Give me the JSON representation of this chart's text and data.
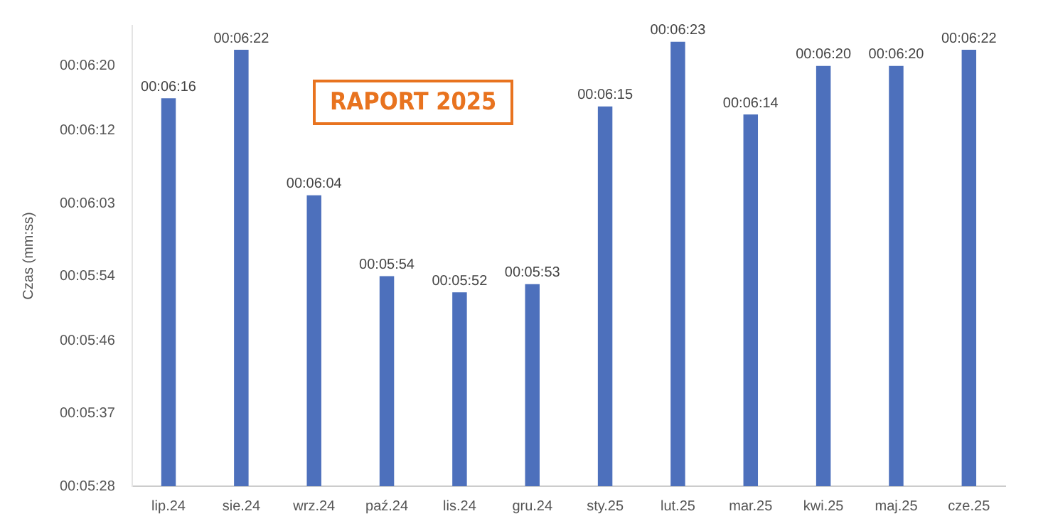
{
  "chart_data": {
    "type": "bar",
    "ylabel": "Czas (mm:ss)",
    "categories": [
      "lip.24",
      "sie.24",
      "wrz.24",
      "paź.24",
      "lis.24",
      "gru.24",
      "sty.25",
      "lut.25",
      "mar.25",
      "kwi.25",
      "maj.25",
      "cze.25"
    ],
    "values": [
      376,
      382,
      364,
      354,
      352,
      353,
      375,
      383,
      374,
      380,
      380,
      382
    ],
    "value_labels": [
      "00:06:16",
      "00:06:22",
      "00:06:04",
      "00:05:54",
      "00:05:52",
      "00:05:53",
      "00:06:15",
      "00:06:23",
      "00:06:14",
      "00:06:20",
      "00:06:20",
      "00:06:22"
    ],
    "color": "#4d70bc",
    "ylim": [
      328,
      385
    ],
    "yticks": [
      {
        "value": 328,
        "label": "00:05:28"
      },
      {
        "value": 337,
        "label": "00:05:37"
      },
      {
        "value": 346,
        "label": "00:05:46"
      },
      {
        "value": 354,
        "label": "00:05:54"
      },
      {
        "value": 363,
        "label": "00:06:03"
      },
      {
        "value": 372,
        "label": "00:06:12"
      },
      {
        "value": 380,
        "label": "00:06:20"
      }
    ],
    "grid": false,
    "legend": false,
    "annotations": [
      "RAPORT 2025"
    ]
  }
}
